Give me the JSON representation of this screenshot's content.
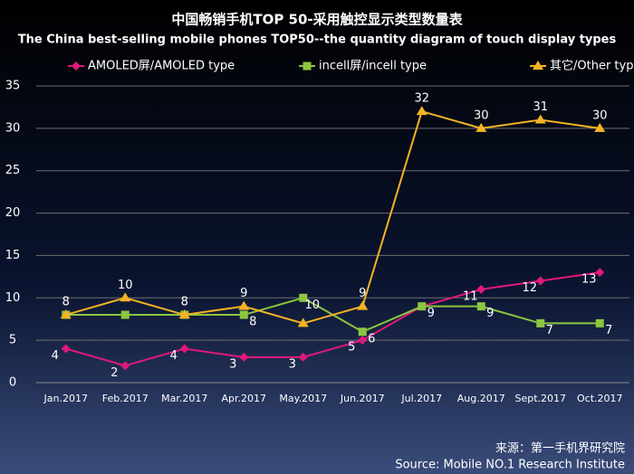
{
  "chart_data": {
    "type": "line",
    "title": "中国畅销手机TOP 50-采用触控显示类型数量表",
    "subtitle": "The China best-selling mobile phones TOP50--the quantity diagram of touch display types",
    "categories": [
      "Jan.2017",
      "Feb.2017",
      "Mar.2017",
      "Apr.2017",
      "May.2017",
      "Jun.2017",
      "Jul.2017",
      "Aug.2017",
      "Sept.2017",
      "Oct.2017"
    ],
    "series": [
      {
        "name": "AMOLED屏/AMOLED type",
        "color": "#e0197a",
        "marker": "diamond",
        "values": [
          4,
          2,
          4,
          3,
          3,
          5,
          9,
          11,
          12,
          13
        ],
        "value_labels": [
          "4",
          "2",
          "4",
          "3",
          "3",
          "5",
          null,
          "11",
          "12",
          "13"
        ]
      },
      {
        "name": "incell屏/incell type",
        "color": "#8cc63f",
        "marker": "square",
        "values": [
          8,
          8,
          8,
          8,
          10,
          6,
          9,
          9,
          7,
          7
        ],
        "value_labels": [
          null,
          null,
          null,
          "8",
          "10",
          "6",
          "9",
          "9",
          "7",
          "7"
        ]
      },
      {
        "name": "其它/Other type",
        "color": "#f5b324",
        "marker": "triangle",
        "values": [
          8,
          10,
          8,
          9,
          7,
          9,
          32,
          30,
          31,
          30
        ],
        "value_labels": [
          "8",
          "10",
          "8",
          "9",
          null,
          "9",
          "32",
          "30",
          "31",
          "30"
        ]
      }
    ],
    "ylim": [
      0,
      35
    ],
    "yticks": [
      0,
      5,
      10,
      15,
      20,
      25,
      30,
      35
    ],
    "grid": true,
    "source": [
      "来源：第一手机界研究院",
      "Source: Mobile NO.1 Research Institute"
    ]
  }
}
